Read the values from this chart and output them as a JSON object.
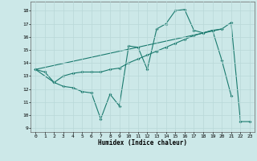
{
  "title": "",
  "xlabel": "Humidex (Indice chaleur)",
  "ylabel": "",
  "bg_color": "#cce8e8",
  "line_color": "#1a7a6e",
  "xlim": [
    -0.5,
    23.5
  ],
  "ylim": [
    8.7,
    18.7
  ],
  "yticks": [
    9,
    10,
    11,
    12,
    13,
    14,
    15,
    16,
    17,
    18
  ],
  "xticks": [
    0,
    1,
    2,
    3,
    4,
    5,
    6,
    7,
    8,
    9,
    10,
    11,
    12,
    13,
    14,
    15,
    16,
    17,
    18,
    19,
    20,
    21,
    22,
    23
  ],
  "line1_x": [
    0,
    1,
    2,
    3,
    4,
    5,
    6,
    7,
    8,
    9,
    10,
    11,
    12,
    13,
    14,
    15,
    16,
    17,
    18,
    19,
    20,
    21
  ],
  "line1_y": [
    13.5,
    13.3,
    12.5,
    12.2,
    12.1,
    11.8,
    11.7,
    9.7,
    11.6,
    10.7,
    15.3,
    15.2,
    13.5,
    16.6,
    17.0,
    18.0,
    18.1,
    16.5,
    16.3,
    16.5,
    14.2,
    11.5
  ],
  "line2_x": [
    0,
    2,
    3,
    4,
    5,
    6,
    7,
    8,
    9,
    10,
    11,
    12,
    13,
    14,
    15,
    16,
    17,
    18,
    19,
    20
  ],
  "line2_y": [
    13.5,
    12.5,
    13.0,
    13.2,
    13.3,
    13.3,
    13.3,
    13.5,
    13.6,
    14.0,
    14.3,
    14.6,
    14.9,
    15.2,
    15.5,
    15.8,
    16.1,
    16.3,
    16.5,
    16.6
  ],
  "line3_x": [
    0,
    20,
    21,
    22,
    23
  ],
  "line3_y": [
    13.5,
    16.6,
    17.1,
    9.5,
    9.5
  ]
}
